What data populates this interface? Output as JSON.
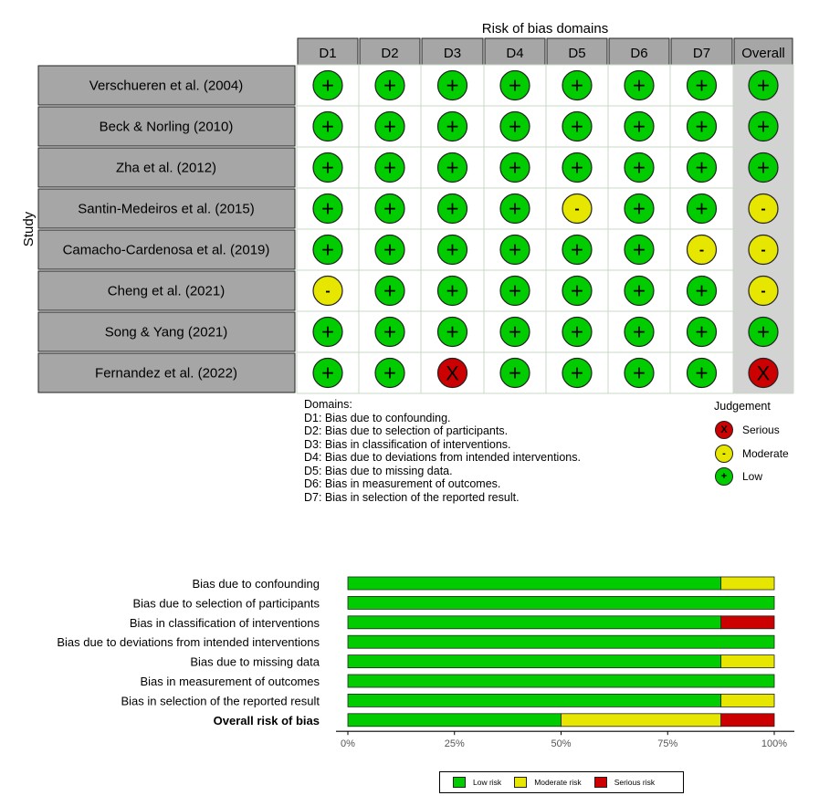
{
  "traffic_light": {
    "top_title": "Risk of bias domains",
    "y_axis_label": "Study",
    "domains": [
      "D1",
      "D2",
      "D3",
      "D4",
      "D5",
      "D6",
      "D7",
      "Overall"
    ],
    "studies": [
      {
        "name": "Verschueren et al. (2004)",
        "judgements": [
          "+",
          "+",
          "+",
          "+",
          "+",
          "+",
          "+",
          "+"
        ]
      },
      {
        "name": "Beck & Norling (2010)",
        "judgements": [
          "+",
          "+",
          "+",
          "+",
          "+",
          "+",
          "+",
          "+"
        ]
      },
      {
        "name": "Zha et al. (2012)",
        "judgements": [
          "+",
          "+",
          "+",
          "+",
          "+",
          "+",
          "+",
          "+"
        ]
      },
      {
        "name": "Santin-Medeiros et al. (2015)",
        "judgements": [
          "+",
          "+",
          "+",
          "+",
          "-",
          "+",
          "+",
          "-"
        ]
      },
      {
        "name": "Camacho-Cardenosa et al. (2019)",
        "judgements": [
          "+",
          "+",
          "+",
          "+",
          "+",
          "+",
          "-",
          "-"
        ]
      },
      {
        "name": "Cheng et al. (2021)",
        "judgements": [
          "-",
          "+",
          "+",
          "+",
          "+",
          "+",
          "+",
          "-"
        ]
      },
      {
        "name": "Song & Yang (2021)",
        "judgements": [
          "+",
          "+",
          "+",
          "+",
          "+",
          "+",
          "+",
          "+"
        ]
      },
      {
        "name": "Fernandez et al. (2022)",
        "judgements": [
          "+",
          "+",
          "X",
          "+",
          "+",
          "+",
          "+",
          "X"
        ]
      }
    ],
    "domains_legend": {
      "title": "Domains:",
      "items": [
        "D1: Bias due to confounding.",
        "D2: Bias due to selection of participants.",
        "D3: Bias in classification of interventions.",
        "D4: Bias due to deviations from intended interventions.",
        "D5: Bias due to missing data.",
        "D6: Bias in measurement of outcomes.",
        "D7: Bias in selection of the reported result."
      ]
    },
    "judgement_legend": {
      "title": "Judgement",
      "items": [
        {
          "symbol": "X",
          "label": "Serious",
          "color": "#cc0000"
        },
        {
          "symbol": "-",
          "label": "Moderate",
          "color": "#e6e600"
        },
        {
          "symbol": "+",
          "label": "Low",
          "color": "#00cc00"
        }
      ]
    }
  },
  "colors": {
    "low": "#00cc00",
    "moderate": "#e6e600",
    "serious": "#cc0000",
    "header_fill": "#a6a6a6",
    "overall_column": "#d3d3d3"
  },
  "chart_data": {
    "type": "bar",
    "orientation": "horizontal-stacked",
    "categories": [
      "Bias due to confounding",
      "Bias due to selection of participants",
      "Bias in classification of interventions",
      "Bias due to deviations from intended interventions",
      "Bias due to missing data",
      "Bias in measurement of outcomes",
      "Bias in selection of the reported result",
      "Overall risk of bias"
    ],
    "bold_categories": [
      "Overall risk of bias"
    ],
    "series": [
      {
        "name": "Low risk",
        "values": [
          87.5,
          100,
          87.5,
          100,
          87.5,
          100,
          87.5,
          50
        ]
      },
      {
        "name": "Moderate risk",
        "values": [
          12.5,
          0,
          0,
          0,
          12.5,
          0,
          12.5,
          37.5
        ]
      },
      {
        "name": "Serious risk",
        "values": [
          0,
          0,
          12.5,
          0,
          0,
          0,
          0,
          12.5
        ]
      }
    ],
    "xlim": [
      0,
      100
    ],
    "xticks": [
      "0%",
      "25%",
      "50%",
      "75%",
      "100%"
    ],
    "legend_position": "bottom"
  }
}
